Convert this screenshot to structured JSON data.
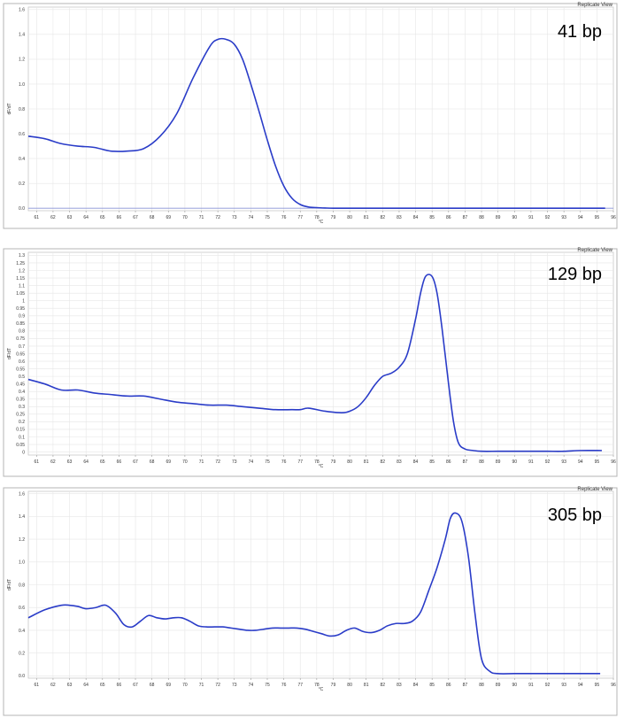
{
  "chart_data": [
    {
      "type": "line",
      "annotation": "41 bp",
      "corner_label": "Replicate View",
      "xlabel": "°C",
      "ylabel": "dF/dT",
      "x_ticks": [
        "61",
        "62",
        "63",
        "64",
        "65",
        "66",
        "67",
        "68",
        "69",
        "70",
        "71",
        "72",
        "73",
        "74",
        "75",
        "76",
        "77",
        "78",
        "79",
        "80",
        "81",
        "82",
        "83",
        "84",
        "85",
        "86",
        "87",
        "88",
        "89",
        "90",
        "91",
        "92",
        "93",
        "94",
        "95",
        "96"
      ],
      "y_ticks": [
        "0.0",
        "0.2",
        "0.4",
        "0.6",
        "0.8",
        "1.0",
        "1.2",
        "1.4",
        "1.6"
      ],
      "xlim": [
        60.5,
        96
      ],
      "ylim": [
        -0.02,
        1.62
      ],
      "grid": true,
      "series": [
        {
          "color": "#2a3cc8",
          "x": [
            60.5,
            61.5,
            62.5,
            63.5,
            64.5,
            65.5,
            66.5,
            67.5,
            68.5,
            69.5,
            70.5,
            71.5,
            72.0,
            72.5,
            73.0,
            73.5,
            74.0,
            74.5,
            75.0,
            75.5,
            76.0,
            76.5,
            77.0,
            77.5,
            78.0,
            78.5,
            79.0,
            80,
            82,
            84,
            86,
            88,
            90,
            92,
            94,
            95.5
          ],
          "y": [
            0.58,
            0.56,
            0.52,
            0.5,
            0.49,
            0.46,
            0.46,
            0.48,
            0.58,
            0.76,
            1.05,
            1.3,
            1.36,
            1.36,
            1.32,
            1.2,
            1.0,
            0.78,
            0.55,
            0.34,
            0.18,
            0.08,
            0.03,
            0.01,
            0.005,
            0.002,
            0.0,
            0.0,
            0.0,
            0.0,
            0.0,
            0.0,
            0.0,
            0.0,
            0.0,
            0.0
          ]
        }
      ]
    },
    {
      "type": "line",
      "annotation": "129 bp",
      "corner_label": "Replicate View",
      "xlabel": "°C",
      "ylabel": "dF/dT",
      "x_ticks": [
        "61",
        "62",
        "63",
        "64",
        "65",
        "66",
        "67",
        "68",
        "69",
        "70",
        "71",
        "72",
        "73",
        "74",
        "75",
        "76",
        "77",
        "78",
        "79",
        "80",
        "81",
        "82",
        "83",
        "84",
        "85",
        "86",
        "87",
        "88",
        "89",
        "90",
        "91",
        "92",
        "93",
        "94",
        "95",
        "96"
      ],
      "y_ticks": [
        "0",
        "0.05",
        "0.1",
        "0.15",
        "0.2",
        "0.25",
        "0.3",
        "0.35",
        "0.4",
        "0.45",
        "0.5",
        "0.55",
        "0.6",
        "0.65",
        "0.7",
        "0.75",
        "0.8",
        "0.85",
        "0.9",
        "0.95",
        "1",
        "1.05",
        "1.1",
        "1.15",
        "1.2",
        "1.25",
        "1.3"
      ],
      "xlim": [
        60.5,
        96
      ],
      "ylim": [
        -0.02,
        1.32
      ],
      "grid": true,
      "series": [
        {
          "color": "#2a3cc8",
          "x": [
            60.5,
            61.5,
            62.5,
            63.5,
            64.5,
            65.5,
            66.5,
            67.5,
            68.5,
            69.5,
            70.5,
            71.5,
            72.5,
            73.5,
            74.5,
            75.5,
            76.5,
            77.0,
            77.5,
            78.5,
            79.5,
            80.0,
            80.5,
            81.0,
            81.5,
            82.0,
            82.5,
            83.0,
            83.5,
            84.0,
            84.3,
            84.6,
            85.0,
            85.3,
            85.6,
            86.0,
            86.3,
            86.6,
            87.0,
            87.5,
            88.0,
            89,
            90,
            91,
            92,
            93,
            94,
            95.3
          ],
          "y": [
            0.48,
            0.45,
            0.41,
            0.41,
            0.39,
            0.38,
            0.37,
            0.37,
            0.35,
            0.33,
            0.32,
            0.31,
            0.31,
            0.3,
            0.29,
            0.28,
            0.28,
            0.28,
            0.29,
            0.27,
            0.26,
            0.27,
            0.3,
            0.36,
            0.44,
            0.5,
            0.52,
            0.56,
            0.65,
            0.88,
            1.05,
            1.16,
            1.16,
            1.05,
            0.82,
            0.45,
            0.2,
            0.06,
            0.02,
            0.01,
            0.005,
            0.005,
            0.005,
            0.005,
            0.005,
            0.005,
            0.01,
            0.01
          ]
        }
      ]
    },
    {
      "type": "line",
      "annotation": "305 bp",
      "corner_label": "Replicate View",
      "xlabel": "°C",
      "ylabel": "dF/dT",
      "x_ticks": [
        "61",
        "62",
        "63",
        "64",
        "65",
        "66",
        "67",
        "68",
        "69",
        "70",
        "71",
        "72",
        "73",
        "74",
        "75",
        "76",
        "77",
        "78",
        "79",
        "80",
        "81",
        "82",
        "83",
        "84",
        "85",
        "86",
        "87",
        "88",
        "89",
        "90",
        "91",
        "92",
        "93",
        "94",
        "95",
        "96"
      ],
      "y_ticks": [
        "0.0",
        "0.2",
        "0.4",
        "0.6",
        "0.8",
        "1.0",
        "1.2",
        "1.4",
        "1.6"
      ],
      "xlim": [
        60.5,
        96
      ],
      "ylim": [
        -0.02,
        1.62
      ],
      "grid": true,
      "series": [
        {
          "color": "#2a3cc8",
          "x": [
            60.5,
            61.5,
            62.5,
            63.0,
            63.5,
            64.0,
            64.6,
            65.2,
            65.8,
            66.3,
            66.8,
            67.3,
            67.8,
            68.3,
            68.8,
            69.3,
            69.8,
            70.3,
            70.8,
            71.3,
            71.8,
            72.3,
            72.8,
            73.3,
            73.8,
            74.3,
            74.8,
            75.3,
            75.8,
            76.3,
            76.8,
            77.3,
            77.8,
            78.3,
            78.8,
            79.3,
            79.8,
            80.3,
            80.8,
            81.3,
            81.8,
            82.3,
            82.8,
            83.3,
            83.8,
            84.3,
            84.8,
            85.3,
            85.8,
            86.1,
            86.4,
            86.8,
            87.2,
            87.6,
            88.0,
            88.5,
            89,
            90,
            91,
            92,
            93,
            94,
            95.2
          ],
          "y": [
            0.51,
            0.58,
            0.62,
            0.62,
            0.61,
            0.59,
            0.6,
            0.62,
            0.55,
            0.45,
            0.43,
            0.48,
            0.53,
            0.51,
            0.5,
            0.51,
            0.51,
            0.48,
            0.44,
            0.43,
            0.43,
            0.43,
            0.42,
            0.41,
            0.4,
            0.4,
            0.41,
            0.42,
            0.42,
            0.42,
            0.42,
            0.41,
            0.39,
            0.37,
            0.35,
            0.36,
            0.4,
            0.42,
            0.39,
            0.38,
            0.4,
            0.44,
            0.46,
            0.46,
            0.48,
            0.56,
            0.75,
            0.95,
            1.2,
            1.38,
            1.43,
            1.36,
            1.05,
            0.55,
            0.15,
            0.04,
            0.02,
            0.02,
            0.02,
            0.02,
            0.02,
            0.02,
            0.02
          ]
        }
      ]
    }
  ]
}
